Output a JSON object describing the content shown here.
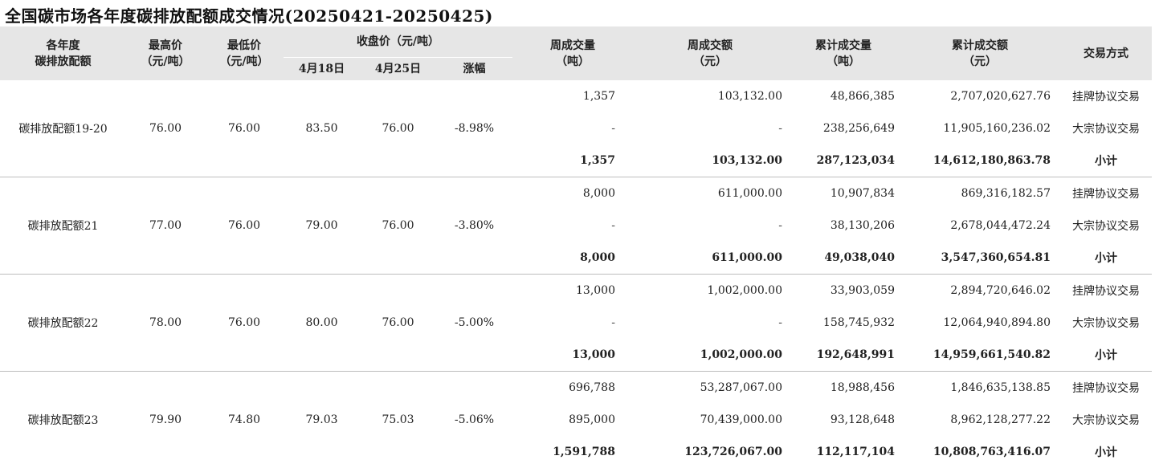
{
  "title": "全国碳市场各年度碳排放配额成交情况(20250421-20250425)",
  "headers": {
    "vintage": [
      "各年度",
      "碳排放配额"
    ],
    "high": [
      "最高价",
      "（元/吨）"
    ],
    "low": [
      "最低价",
      "（元/吨）"
    ],
    "close_group": "收盘价（元/吨）",
    "close_prev": "4月18日",
    "close_curr": "4月25日",
    "change": "涨幅",
    "week_vol": [
      "周成交量",
      "（吨）"
    ],
    "week_amt": [
      "周成交额",
      "（元）"
    ],
    "cum_vol": [
      "累计成交量",
      "（吨）"
    ],
    "cum_amt": [
      "累计成交额",
      "（元）"
    ],
    "mode": "交易方式"
  },
  "groups": [
    {
      "name": "碳排放配额19-20",
      "high": "76.00",
      "low": "76.00",
      "close_prev": "83.50",
      "close_curr": "76.00",
      "change": "-8.98%",
      "rows": [
        {
          "week_vol": "1,357",
          "week_amt": "103,132.00",
          "cum_vol": "48,866,385",
          "cum_amt": "2,707,020,627.76",
          "mode": "挂牌协议交易"
        },
        {
          "week_vol": "-",
          "week_amt": "-",
          "cum_vol": "238,256,649",
          "cum_amt": "11,905,160,236.02",
          "mode": "大宗协议交易"
        },
        {
          "week_vol": "1,357",
          "week_amt": "103,132.00",
          "cum_vol": "287,123,034",
          "cum_amt": "14,612,180,863.78",
          "mode": "小计"
        }
      ]
    },
    {
      "name": "碳排放配额21",
      "high": "77.00",
      "low": "76.00",
      "close_prev": "79.00",
      "close_curr": "76.00",
      "change": "-3.80%",
      "rows": [
        {
          "week_vol": "8,000",
          "week_amt": "611,000.00",
          "cum_vol": "10,907,834",
          "cum_amt": "869,316,182.57",
          "mode": "挂牌协议交易"
        },
        {
          "week_vol": "-",
          "week_amt": "-",
          "cum_vol": "38,130,206",
          "cum_amt": "2,678,044,472.24",
          "mode": "大宗协议交易"
        },
        {
          "week_vol": "8,000",
          "week_amt": "611,000.00",
          "cum_vol": "49,038,040",
          "cum_amt": "3,547,360,654.81",
          "mode": "小计"
        }
      ]
    },
    {
      "name": "碳排放配额22",
      "high": "78.00",
      "low": "76.00",
      "close_prev": "80.00",
      "close_curr": "76.00",
      "change": "-5.00%",
      "rows": [
        {
          "week_vol": "13,000",
          "week_amt": "1,002,000.00",
          "cum_vol": "33,903,059",
          "cum_amt": "2,894,720,646.02",
          "mode": "挂牌协议交易"
        },
        {
          "week_vol": "-",
          "week_amt": "-",
          "cum_vol": "158,745,932",
          "cum_amt": "12,064,940,894.80",
          "mode": "大宗协议交易"
        },
        {
          "week_vol": "13,000",
          "week_amt": "1,002,000.00",
          "cum_vol": "192,648,991",
          "cum_amt": "14,959,661,540.82",
          "mode": "小计"
        }
      ]
    },
    {
      "name": "碳排放配额23",
      "high": "79.90",
      "low": "74.80",
      "close_prev": "79.03",
      "close_curr": "75.03",
      "change": "-5.06%",
      "rows": [
        {
          "week_vol": "696,788",
          "week_amt": "53,287,067.00",
          "cum_vol": "18,988,456",
          "cum_amt": "1,846,635,138.85",
          "mode": "挂牌协议交易"
        },
        {
          "week_vol": "895,000",
          "week_amt": "70,439,000.00",
          "cum_vol": "93,128,648",
          "cum_amt": "8,962,128,277.22",
          "mode": "大宗协议交易"
        },
        {
          "week_vol": "1,591,788",
          "week_amt": "123,726,067.00",
          "cum_vol": "112,117,104",
          "cum_amt": "10,808,763,416.07",
          "mode": "小计"
        }
      ]
    }
  ]
}
